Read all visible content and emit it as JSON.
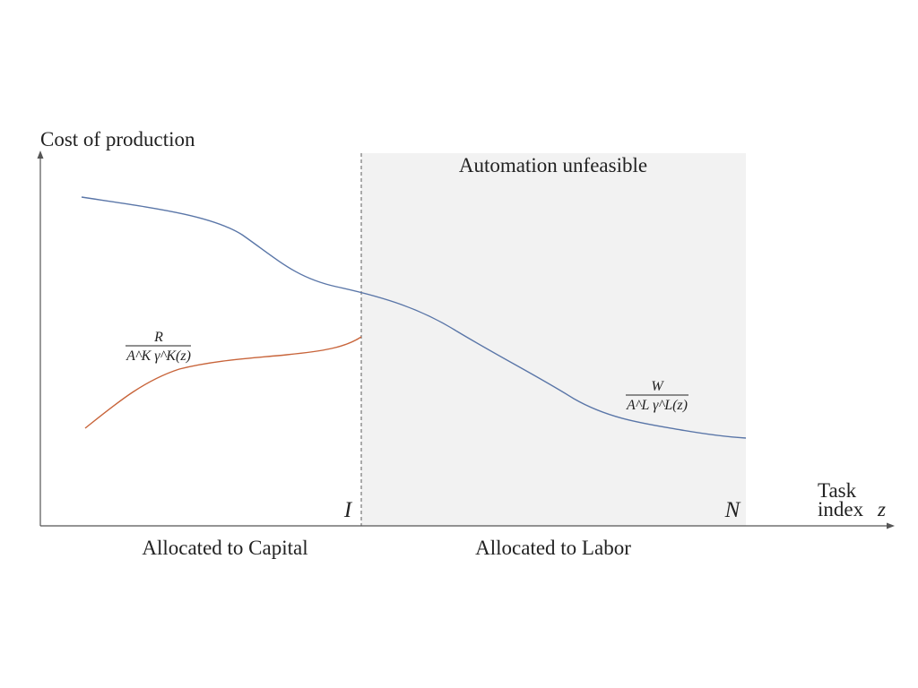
{
  "diagram": {
    "y_axis_label": "Cost of production",
    "x_axis_label_line1": "Task",
    "x_axis_label_line2": "index",
    "x_axis_var": "z",
    "region_label_top": "Automation unfeasible",
    "marker_I": "I",
    "marker_N": "N",
    "region_left_label": "Allocated to Capital",
    "region_right_label": "Allocated to Labor",
    "capital_curve": {
      "numerator": "R",
      "denominator": "A^K γ^K(z)",
      "color": "#c8643a"
    },
    "labor_curve": {
      "numerator": "W",
      "denominator": "A^L γ^L(z)",
      "color": "#5a76a8"
    },
    "shade_color": "#f2f2f2",
    "axis_color": "#555555"
  }
}
